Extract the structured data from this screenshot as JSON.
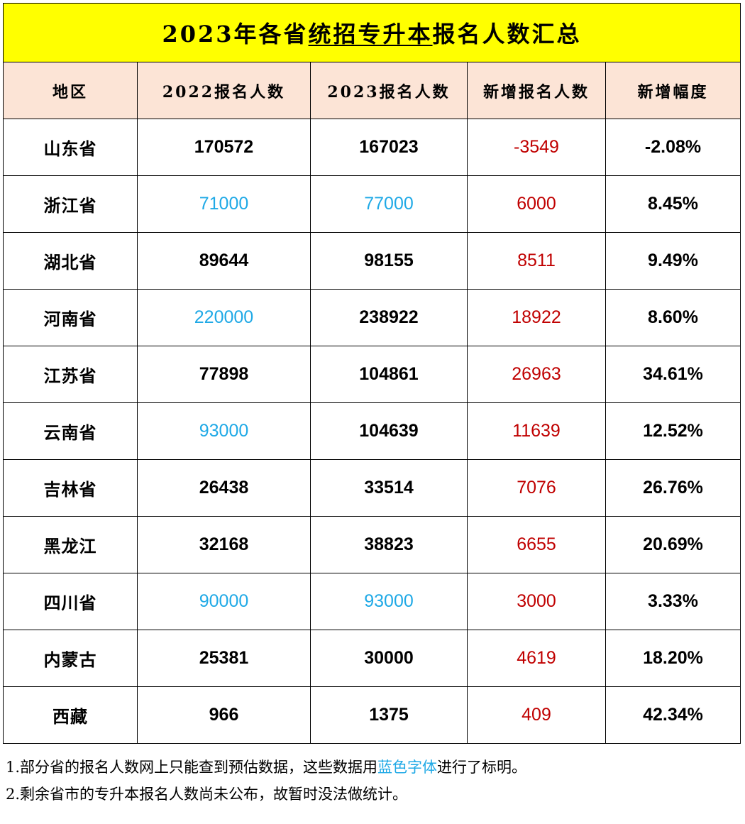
{
  "title": {
    "part1": "2023年各省",
    "part2": "统招专升本",
    "part3": "报名人数汇总"
  },
  "headers": [
    "地区",
    "2022报名人数",
    "2023报名人数",
    "新增报名人数",
    "新增幅度"
  ],
  "rows": [
    {
      "region": "山东省",
      "v2022": "170572",
      "v2023": "167023",
      "increase": "-3549",
      "rate": "-2.08%",
      "est2022": false,
      "est2023": false
    },
    {
      "region": "浙江省",
      "v2022": "71000",
      "v2023": "77000",
      "increase": "6000",
      "rate": "8.45%",
      "est2022": true,
      "est2023": true
    },
    {
      "region": "湖北省",
      "v2022": "89644",
      "v2023": "98155",
      "increase": "8511",
      "rate": "9.49%",
      "est2022": false,
      "est2023": false
    },
    {
      "region": "河南省",
      "v2022": "220000",
      "v2023": "238922",
      "increase": "18922",
      "rate": "8.60%",
      "est2022": true,
      "est2023": false
    },
    {
      "region": "江苏省",
      "v2022": "77898",
      "v2023": "104861",
      "increase": "26963",
      "rate": "34.61%",
      "est2022": false,
      "est2023": false
    },
    {
      "region": "云南省",
      "v2022": "93000",
      "v2023": "104639",
      "increase": "11639",
      "rate": "12.52%",
      "est2022": true,
      "est2023": false
    },
    {
      "region": "吉林省",
      "v2022": "26438",
      "v2023": "33514",
      "increase": "7076",
      "rate": "26.76%",
      "est2022": false,
      "est2023": false
    },
    {
      "region": "黑龙江",
      "v2022": "32168",
      "v2023": "38823",
      "increase": "6655",
      "rate": "20.69%",
      "est2022": false,
      "est2023": false
    },
    {
      "region": "四川省",
      "v2022": "90000",
      "v2023": "93000",
      "increase": "3000",
      "rate": "3.33%",
      "est2022": true,
      "est2023": true
    },
    {
      "region": "内蒙古",
      "v2022": "25381",
      "v2023": "30000",
      "increase": "4619",
      "rate": "18.20%",
      "est2022": false,
      "est2023": false
    },
    {
      "region": "西藏",
      "v2022": "966",
      "v2023": "1375",
      "increase": "409",
      "rate": "42.34%",
      "est2022": false,
      "est2023": false
    }
  ],
  "notes": {
    "line1_prefix": "1.部分省的报名人数网上只能查到预估数据，这些数据用",
    "line1_highlight": "蓝色字体",
    "line1_suffix": "进行了标明。",
    "line2": "2.剩余省市的专升本报名人数尚未公布，故暂时没法做统计。"
  },
  "colors": {
    "title_bg": "#ffff00",
    "header_bg": "#fce4d6",
    "estimate_text": "#1fa9e6",
    "increase_text": "#c00000"
  }
}
